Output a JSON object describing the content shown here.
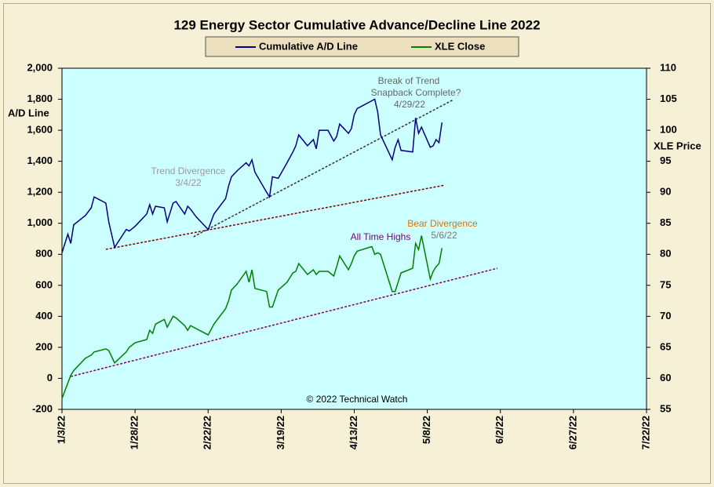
{
  "chart_data": {
    "type": "line",
    "title": "129 Energy Sector Cumulative Advance/Decline Line 2022",
    "ylabel": "A/D Line",
    "y2label": "XLE Price",
    "credit": "© 2022 Technical Watch",
    "annotations": [
      {
        "text": [
          "Trend Divergence",
          "3/4/22"
        ],
        "color": "#999999"
      },
      {
        "text": [
          "Break of Trend",
          "Snapback Complete?",
          "4/29/22"
        ],
        "color": "#666666"
      },
      {
        "text": [
          "All Time Highs"
        ],
        "color": "#800080"
      },
      {
        "text": [
          "Bear Divergence"
        ],
        "color": "#e07000"
      },
      {
        "text": [
          "5/6/22"
        ],
        "color": "#777777"
      }
    ],
    "xlim": [
      "1/3/22",
      "7/22/22"
    ],
    "xticks": [
      "1/3/22",
      "1/28/22",
      "2/22/22",
      "3/19/22",
      "4/13/22",
      "5/8/22",
      "6/2/22",
      "6/27/22",
      "7/22/22"
    ],
    "ylim": [
      -200,
      2000
    ],
    "yticks": [
      -200,
      0,
      200,
      400,
      600,
      800,
      {
        "value": 1000,
        "label": "1,000"
      },
      {
        "value": 1200,
        "label": "1,200"
      },
      {
        "value": 1400,
        "label": "1,400"
      },
      {
        "value": 1600,
        "label": "1,600"
      },
      {
        "value": 1800,
        "label": "1,800"
      },
      {
        "value": 2000,
        "label": "2,000"
      }
    ],
    "y2lim": [
      55,
      110
    ],
    "y2ticks": [
      55,
      60,
      65,
      70,
      75,
      80,
      85,
      90,
      95,
      100,
      105,
      110
    ],
    "x": [
      "1/3/22",
      "1/5/22",
      "1/6/22",
      "1/7/22",
      "1/11/22",
      "1/13/22",
      "1/14/22",
      "1/18/22",
      "1/19/22",
      "1/21/22",
      "1/25/22",
      "1/26/22",
      "1/28/22",
      "2/1/22",
      "2/2/22",
      "2/3/22",
      "2/4/22",
      "2/7/22",
      "2/8/22",
      "2/10/22",
      "2/11/22",
      "2/14/22",
      "2/15/22",
      "2/16/22",
      "2/18/22",
      "2/22/22",
      "2/24/22",
      "2/28/22",
      "3/1/22",
      "3/2/22",
      "3/4/22",
      "3/7/22",
      "3/8/22",
      "3/9/22",
      "3/10/22",
      "3/14/22",
      "3/15/22",
      "3/16/22",
      "3/18/22",
      "3/21/22",
      "3/23/22",
      "3/24/22",
      "3/25/22",
      "3/28/22",
      "3/30/22",
      "3/31/22",
      "4/1/22",
      "4/4/22",
      "4/6/22",
      "4/7/22",
      "4/8/22",
      "4/11/22",
      "4/12/22",
      "4/13/22",
      "4/14/22",
      "4/19/22",
      "4/20/22",
      "4/21/22",
      "4/22/22",
      "4/26/22",
      "4/27/22",
      "4/28/22",
      "4/29/22",
      "5/3/22",
      "5/4/22",
      "5/5/22",
      "5/6/22",
      "5/9/22",
      "5/10/22",
      "5/11/22",
      "5/12/22",
      "5/13/22"
    ],
    "series": [
      {
        "name": "Cumulative A/D Line",
        "color": "#000080",
        "values": [
          810,
          930,
          870,
          990,
          1050,
          1100,
          1170,
          1130,
          1010,
          845,
          960,
          950,
          980,
          1060,
          1120,
          1060,
          1110,
          1100,
          1010,
          1130,
          1140,
          1060,
          1110,
          1090,
          1040,
          960,
          1060,
          1160,
          1240,
          1300,
          1340,
          1390,
          1370,
          1410,
          1330,
          1200,
          1170,
          1300,
          1290,
          1390,
          1460,
          1500,
          1570,
          1500,
          1540,
          1480,
          1600,
          1600,
          1530,
          1560,
          1640,
          1580,
          1610,
          1700,
          1740,
          1790,
          1800,
          1720,
          1570,
          1410,
          1490,
          1540,
          1470,
          1460,
          1680,
          1580,
          1620,
          1490,
          1500,
          1540,
          1520,
          1650
        ]
      },
      {
        "name": "XLE Close",
        "color": "#008000",
        "axis": "y2",
        "values": [
          56.75,
          59.25,
          60.5,
          61.25,
          63.25,
          63.75,
          64.25,
          64.75,
          64.5,
          62.5,
          64.25,
          65,
          65.75,
          66.25,
          67.75,
          67.25,
          68.75,
          69.5,
          68.25,
          70,
          69.75,
          68.5,
          67.75,
          68.5,
          68,
          67,
          68.75,
          71.25,
          72.5,
          74.25,
          75.25,
          77.25,
          75.5,
          77.5,
          74.5,
          74,
          71.5,
          71.5,
          74.25,
          75.5,
          77,
          77.25,
          78.5,
          76.75,
          77.5,
          76.75,
          77.25,
          77.25,
          76.5,
          78,
          79.75,
          77.5,
          78.5,
          79.75,
          80.5,
          81.25,
          80,
          80.25,
          80,
          74,
          74,
          75.5,
          77,
          77.75,
          81.75,
          80.75,
          83,
          76,
          77.25,
          78,
          78.5,
          81
        ]
      }
    ],
    "trend_lines": [
      {
        "color": "#333333",
        "x": [
          "2/17/22",
          "5/17/22"
        ],
        "y": [
          913,
          1798
        ]
      },
      {
        "color": "#800000",
        "x": [
          "1/18/22",
          "5/14/22"
        ],
        "y": [
          832,
          1246
        ]
      },
      {
        "color": "#800060",
        "axis": "y2",
        "x": [
          "1/6/22",
          "6/1/22"
        ],
        "y": [
          60.3,
          77.75
        ]
      }
    ]
  }
}
